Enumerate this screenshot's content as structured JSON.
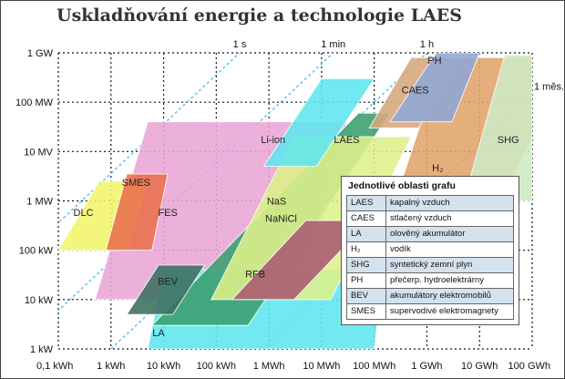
{
  "title": "Uskladňování energie a technologie LAES",
  "chart_data": {
    "type": "area",
    "x_axis": {
      "scale": "log",
      "range_kWh": [
        0.1,
        100000000
      ],
      "tick_values_kWh": [
        0.1,
        1,
        10,
        100,
        1000,
        10000,
        100000,
        1000000,
        10000000,
        100000000
      ],
      "tick_labels": [
        "0,1 kWh",
        "1 kWh",
        "10 kWh",
        "100 kWh",
        "1 MWh",
        "10 MWh",
        "100 MWh",
        "1 GWh",
        "10 GWh",
        "100 GWh"
      ]
    },
    "y_axis": {
      "scale": "log",
      "range_kW": [
        1,
        1000000
      ],
      "tick_values_kW": [
        1,
        10,
        100,
        1000,
        10000,
        100000,
        1000000
      ],
      "tick_labels": [
        "1 kW",
        "10 kW",
        "100 kW",
        "1 MW",
        "10 MV",
        "100 MW",
        "1 GW"
      ]
    },
    "grid": true,
    "discharge_time_lines": [
      {
        "label": "1 s",
        "hours": 0.000278
      },
      {
        "label": "1 min",
        "hours": 0.01667
      },
      {
        "label": "1 h",
        "hours": 1
      },
      {
        "label": "1 měs.",
        "hours": 720
      }
    ],
    "regions": [
      {
        "name": "FES",
        "color": "#e8a6d6",
        "vertices": [
          [
            0.5,
            10
          ],
          [
            3000,
            10
          ],
          [
            30000,
            40000
          ],
          [
            5,
            40000
          ]
        ]
      },
      {
        "name": "LA",
        "color": "#5fe6ee",
        "vertices": [
          [
            5,
            1
          ],
          [
            100000,
            1
          ],
          [
            150000,
            40
          ],
          [
            10,
            40
          ]
        ]
      },
      {
        "name": "Li-ion",
        "color": "#3b9e70",
        "vertices": [
          [
            6,
            3
          ],
          [
            400,
            3
          ],
          [
            200000,
            60000
          ],
          [
            50000,
            60000
          ]
        ]
      },
      {
        "name": "NaS NaNiCl",
        "color": "#ddf08a",
        "vertices": [
          [
            80,
            10
          ],
          [
            15000,
            10
          ],
          [
            500000,
            20000
          ],
          [
            3000,
            20000
          ]
        ]
      },
      {
        "name": "DLC",
        "color": "#f3f56a",
        "vertices": [
          [
            0.1,
            100
          ],
          [
            0.6,
            2500
          ],
          [
            5,
            2500
          ],
          [
            2,
            100
          ]
        ]
      },
      {
        "name": "BEV",
        "color": "#3c6e5e",
        "vertices": [
          [
            2,
            5
          ],
          [
            8,
            50
          ],
          [
            60,
            50
          ],
          [
            15,
            5
          ]
        ]
      },
      {
        "name": "RFB",
        "color": "#a85a70",
        "vertices": [
          [
            200,
            10
          ],
          [
            3000,
            10
          ],
          [
            80000,
            400
          ],
          [
            5000,
            400
          ]
        ]
      },
      {
        "name": "SMES",
        "color": "#e86f4c",
        "vertices": [
          [
            0.8,
            100
          ],
          [
            2,
            3500
          ],
          [
            12,
            3500
          ],
          [
            6,
            100
          ]
        ]
      },
      {
        "name": "LAES",
        "color": "#5fe6ee",
        "vertices": [
          [
            800,
            5000
          ],
          [
            8000,
            5000
          ],
          [
            100000,
            300000
          ],
          [
            10000,
            300000
          ]
        ]
      },
      {
        "name": "H2",
        "color": "#e0a46a",
        "vertices": [
          [
            200000,
            500
          ],
          [
            20000000,
            500
          ],
          [
            100000000,
            20000
          ],
          [
            100000000,
            800000
          ],
          [
            2000000,
            800000
          ]
        ]
      },
      {
        "name": "SHG",
        "color": "#cdeac4",
        "vertices": [
          [
            5000000,
            1000
          ],
          [
            100000000,
            1000
          ],
          [
            100000000,
            900000
          ],
          [
            30000000,
            900000
          ]
        ]
      },
      {
        "name": "CAES",
        "color": "#d7a77d",
        "vertices": [
          [
            80000,
            30000
          ],
          [
            700000,
            30000
          ],
          [
            4000000,
            800000
          ],
          [
            500000,
            800000
          ]
        ]
      },
      {
        "name": "PH",
        "color": "#8fa6d6",
        "vertices": [
          [
            200000,
            40000
          ],
          [
            3000000,
            40000
          ],
          [
            10000000,
            1000000
          ],
          [
            1500000,
            1000000
          ]
        ]
      }
    ],
    "labels": [
      {
        "text": "FES",
        "x_kWh": 12,
        "y_kW": 500
      },
      {
        "text": "LA",
        "x_kWh": 8,
        "y_kW": 1.8
      },
      {
        "text": "Li-ion",
        "x_kWh": 1200,
        "y_kW": 15000
      },
      {
        "text": "NaS",
        "x_kWh": 1400,
        "y_kW": 850
      },
      {
        "text": "NaNiCl",
        "x_kWh": 1700,
        "y_kW": 380
      },
      {
        "text": "DLC",
        "x_kWh": 0.3,
        "y_kW": 500
      },
      {
        "text": "BEV",
        "x_kWh": 12,
        "y_kW": 20
      },
      {
        "text": "RFB",
        "x_kWh": 550,
        "y_kW": 28
      },
      {
        "text": "SMES",
        "x_kWh": 3,
        "y_kW": 2000
      },
      {
        "text": "LAES",
        "x_kWh": 30000,
        "y_kW": 15000
      },
      {
        "text": "CAES",
        "x_kWh": 600000,
        "y_kW": 150000
      },
      {
        "text": "PH",
        "x_kWh": 1400000,
        "y_kW": 600000
      },
      {
        "text": "SHG",
        "x_kWh": 35000000,
        "y_kW": 15000
      },
      {
        "text": "H₂",
        "x_kWh": 1600000,
        "y_kW": 4000
      }
    ]
  },
  "legend": {
    "title": "Jednotlivé oblasti grafu",
    "rows": [
      {
        "abbr": "LAES",
        "desc": "kapalný vzduch"
      },
      {
        "abbr": "CAES",
        "desc": "stlačený vzduch"
      },
      {
        "abbr": "LA",
        "desc": "olověný akumulátor"
      },
      {
        "abbr": "H₂",
        "desc": "vodík"
      },
      {
        "abbr": "SHG",
        "desc": "syntetický zemní plyn"
      },
      {
        "abbr": "PH",
        "desc": "přečerp. hydroelektrárny"
      },
      {
        "abbr": "BEV",
        "desc": "akumulátory elektromobilů"
      },
      {
        "abbr": "SMES",
        "desc": "supervodivé elektromagnety"
      }
    ]
  }
}
